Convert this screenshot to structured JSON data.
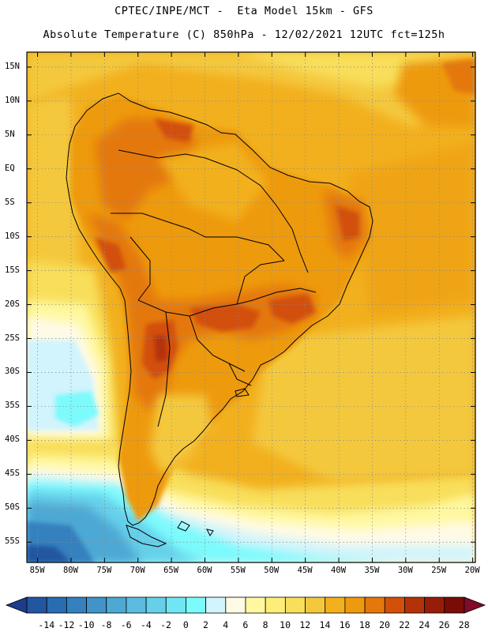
{
  "header": {
    "line1": "CPTEC/INPE/MCT -  Eta Model 15km - GFS",
    "line2": "Absolute Temperature (C) 850hPa - 12/02/2021 12UTC fct=125h"
  },
  "map": {
    "lat_ticks": [
      {
        "value": 15,
        "label": "15N"
      },
      {
        "value": 10,
        "label": "10N"
      },
      {
        "value": 5,
        "label": "5N"
      },
      {
        "value": 0,
        "label": "EQ"
      },
      {
        "value": -5,
        "label": "5S"
      },
      {
        "value": -10,
        "label": "10S"
      },
      {
        "value": -15,
        "label": "15S"
      },
      {
        "value": -20,
        "label": "20S"
      },
      {
        "value": -25,
        "label": "25S"
      },
      {
        "value": -30,
        "label": "30S"
      },
      {
        "value": -35,
        "label": "35S"
      },
      {
        "value": -40,
        "label": "40S"
      },
      {
        "value": -45,
        "label": "45S"
      },
      {
        "value": -50,
        "label": "50S"
      },
      {
        "value": -55,
        "label": "55S"
      }
    ],
    "lon_ticks": [
      {
        "value": -85,
        "label": "85W"
      },
      {
        "value": -80,
        "label": "80W"
      },
      {
        "value": -75,
        "label": "75W"
      },
      {
        "value": -70,
        "label": "70W"
      },
      {
        "value": -65,
        "label": "65W"
      },
      {
        "value": -60,
        "label": "60W"
      },
      {
        "value": -55,
        "label": "55W"
      },
      {
        "value": -50,
        "label": "50W"
      },
      {
        "value": -45,
        "label": "45W"
      },
      {
        "value": -40,
        "label": "40W"
      },
      {
        "value": -35,
        "label": "35W"
      },
      {
        "value": -30,
        "label": "30W"
      },
      {
        "value": -25,
        "label": "25W"
      },
      {
        "value": -20,
        "label": "20W"
      }
    ]
  },
  "colorbar": {
    "labels": [
      "-14",
      "-12",
      "-10",
      "-8",
      "-6",
      "-4",
      "-2",
      "0",
      "2",
      "4",
      "6",
      "8",
      "10",
      "12",
      "14",
      "16",
      "18",
      "20",
      "22",
      "24",
      "26",
      "28"
    ],
    "colors": [
      "#1e3c8c",
      "#2356a0",
      "#2a6cb0",
      "#3580be",
      "#4294c8",
      "#4ea8d4",
      "#5bbcdf",
      "#66d0ea",
      "#70e6f4",
      "#7cfafc",
      "#d2f4fc",
      "#fffae6",
      "#fff8a0",
      "#fcee78",
      "#f8de5a",
      "#f4c83c",
      "#f2b01e",
      "#ee9a10",
      "#e4780c",
      "#d2500a",
      "#b43208",
      "#961e08",
      "#7a0c08",
      "#800a2a"
    ]
  },
  "palette": {
    "border": "#000000",
    "grid": "#8a8a8a"
  }
}
